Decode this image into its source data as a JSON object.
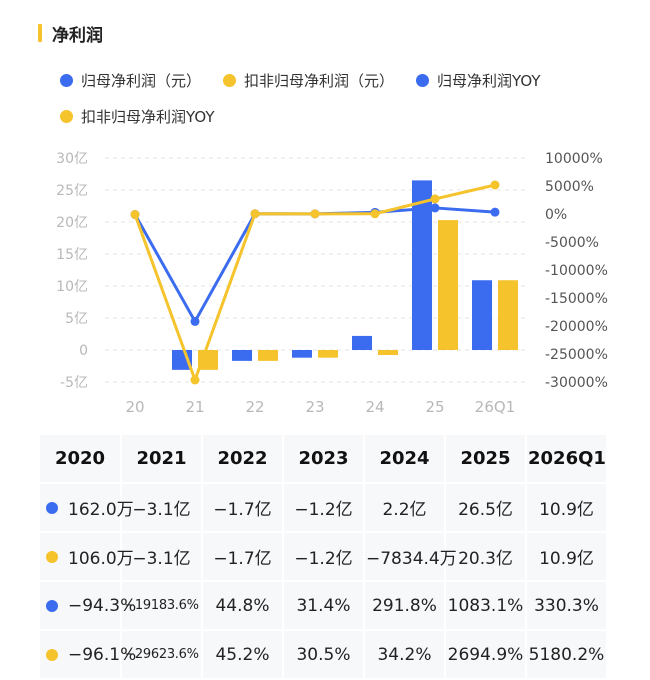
{
  "header": {
    "title": "净利润"
  },
  "legend": [
    {
      "label": "归母净利润（元）",
      "color": "#3b6cf0"
    },
    {
      "label": "扣非归母净利润（元）",
      "color": "#f5c32c"
    },
    {
      "label": "归母净利润YOY",
      "color": "#3b6cf0"
    },
    {
      "label": "扣非归母净利润YOY",
      "color": "#f5c32c"
    }
  ],
  "colors": {
    "blue": "#3b6cf0",
    "yellow": "#f5c32c",
    "accent": "#f5c32c"
  },
  "chart_data": {
    "type": "bar",
    "categories": [
      "20",
      "21",
      "22",
      "23",
      "24",
      "25",
      "26Q1"
    ],
    "left_axis": {
      "ticks": [
        "30亿",
        "25亿",
        "20亿",
        "15亿",
        "10亿",
        "5亿",
        "0",
        "-5亿"
      ],
      "ylim": [
        -5,
        30
      ],
      "unit": "亿"
    },
    "right_axis": {
      "ticks": [
        "10000%",
        "5000%",
        "0%",
        "-5000%",
        "-10000%",
        "-15000%",
        "-20000%",
        "-25000%",
        "-30000%"
      ],
      "ylim": [
        -30000,
        10000
      ]
    },
    "grid": true,
    "series": [
      {
        "name": "归母净利润（元）",
        "type": "bar",
        "axis": "left",
        "values": [
          0.0162,
          -3.1,
          -1.7,
          -1.2,
          2.2,
          26.5,
          10.9
        ]
      },
      {
        "name": "扣非归母净利润（元）",
        "type": "bar",
        "axis": "left",
        "values": [
          0.0106,
          -3.1,
          -1.7,
          -1.2,
          -0.783,
          20.3,
          10.9
        ]
      },
      {
        "name": "归母净利润YOY",
        "type": "line",
        "axis": "right",
        "values": [
          -94.3,
          -19183.6,
          44.8,
          31.4,
          291.8,
          1083.1,
          330.3
        ]
      },
      {
        "name": "扣非归母净利润YOY",
        "type": "line",
        "axis": "right",
        "values": [
          -96.1,
          -29623.6,
          45.2,
          30.5,
          34.2,
          2694.9,
          5180.2
        ]
      }
    ]
  },
  "table": {
    "headers": [
      "2020",
      "2021",
      "2022",
      "2023",
      "2024",
      "2025",
      "2026Q1"
    ],
    "rows": [
      {
        "color": "#3b6cf0",
        "cells": [
          "162.0万",
          "−3.1亿",
          "−1.7亿",
          "−1.2亿",
          "2.2亿",
          "26.5亿",
          "10.9亿"
        ]
      },
      {
        "color": "#f5c32c",
        "cells": [
          "106.0万",
          "−3.1亿",
          "−1.7亿",
          "−1.2亿",
          "−7834.4万",
          "20.3亿",
          "10.9亿"
        ]
      },
      {
        "color": "#3b6cf0",
        "cells": [
          "−94.3%",
          "−19183.6%",
          "44.8%",
          "31.4%",
          "291.8%",
          "1083.1%",
          "330.3%"
        ]
      },
      {
        "color": "#f5c32c",
        "cells": [
          "−96.1%",
          "−29623.6%",
          "45.2%",
          "30.5%",
          "34.2%",
          "2694.9%",
          "5180.2%"
        ]
      }
    ]
  }
}
